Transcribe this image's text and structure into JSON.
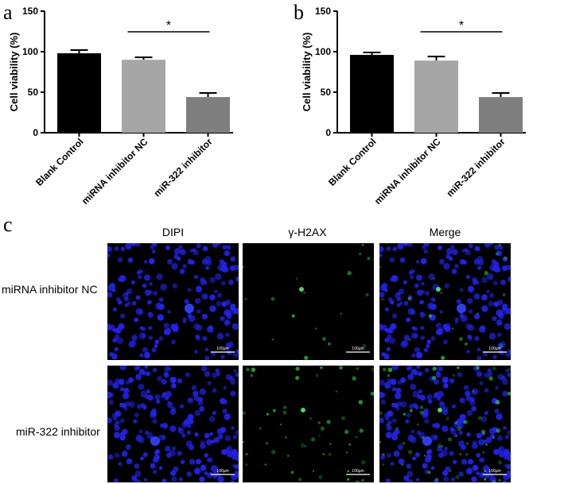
{
  "figure": {
    "panel_letters": [
      "a",
      "b",
      "c"
    ],
    "panel_c": {
      "columns": [
        "DIPI",
        "γ-H2AX",
        "Merge"
      ],
      "rows": [
        "miRNA inhibitor NC",
        "miR-322 inhibitor"
      ],
      "scale_bar_label": "100μm",
      "colors": {
        "nuclei": "#2222ee",
        "gamma_h2ax": "#33cc44",
        "background": "#000000"
      }
    }
  },
  "chart_data": [
    {
      "type": "bar",
      "panel": "a",
      "categories": [
        "Blank Control",
        "miRNA inhibitor NC",
        "miR-322 inhibitor"
      ],
      "values": [
        98,
        90,
        44
      ],
      "errors": [
        4,
        3,
        5
      ],
      "colors": [
        "#000000",
        "#a6a6a6",
        "#7f7f7f"
      ],
      "ylabel": "Cell viability (%)",
      "ylim": [
        0,
        150
      ],
      "yticks": [
        0,
        50,
        100,
        150
      ],
      "significance": {
        "from": 1,
        "to": 2,
        "label": "*"
      },
      "grid": false
    },
    {
      "type": "bar",
      "panel": "b",
      "categories": [
        "Blank Control",
        "miRNA inhibitor NC",
        "miR-322 inhibitor"
      ],
      "values": [
        96,
        89,
        44
      ],
      "errors": [
        3,
        5,
        5
      ],
      "colors": [
        "#000000",
        "#a6a6a6",
        "#7f7f7f"
      ],
      "ylabel": "Cell viability (%)",
      "ylim": [
        0,
        150
      ],
      "yticks": [
        0,
        50,
        100,
        150
      ],
      "significance": {
        "from": 1,
        "to": 2,
        "label": "*"
      },
      "grid": false
    }
  ]
}
